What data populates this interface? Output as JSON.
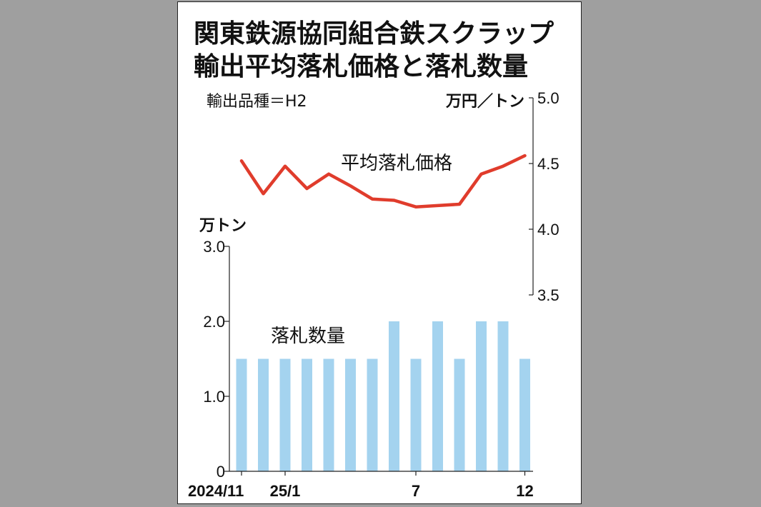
{
  "chart_data": {
    "type": "bar+line",
    "title_lines": [
      "関東鉄源協同組合鉄スクラップ",
      "輸出平均落札価格と落札数量"
    ],
    "note": "輸出品種＝H2",
    "categories": [
      "2024/11",
      "",
      "25/1",
      "",
      "",
      "",
      "",
      "",
      "7",
      "",
      "",
      "",
      "",
      "12"
    ],
    "x_tick_labels": [
      {
        "index": 0,
        "label": "2024/11"
      },
      {
        "index": 2,
        "label": "25/1"
      },
      {
        "index": 8,
        "label": "7"
      },
      {
        "index": 13,
        "label": "12"
      }
    ],
    "series": [
      {
        "name": "落札数量",
        "type": "bar",
        "axis": "left",
        "values": [
          1.5,
          1.5,
          1.5,
          1.5,
          1.5,
          1.5,
          1.5,
          2.0,
          1.5,
          2.0,
          1.5,
          2.0,
          2.0,
          1.5
        ]
      },
      {
        "name": "平均落札価格",
        "type": "line",
        "axis": "right",
        "values": [
          4.52,
          4.27,
          4.48,
          4.31,
          4.42,
          4.33,
          4.23,
          4.22,
          4.17,
          4.18,
          4.19,
          4.42,
          4.48,
          4.56
        ]
      }
    ],
    "left_axis": {
      "unit": "万トン",
      "range": [
        0,
        3.0
      ],
      "ticks": [
        0,
        1.0,
        2.0,
        3.0
      ],
      "tick_labels": [
        "0",
        "1.0",
        "2.0",
        "3.0"
      ]
    },
    "right_axis": {
      "unit": "万円／トン",
      "range": [
        3.5,
        5.0
      ],
      "ticks": [
        3.5,
        4.0,
        4.5,
        5.0
      ],
      "tick_labels": [
        "3.5",
        "4.0",
        "4.5",
        "5.0"
      ]
    },
    "colors": {
      "bar": "#a4d3ef",
      "line": "#e03c2c"
    },
    "grid": false
  }
}
